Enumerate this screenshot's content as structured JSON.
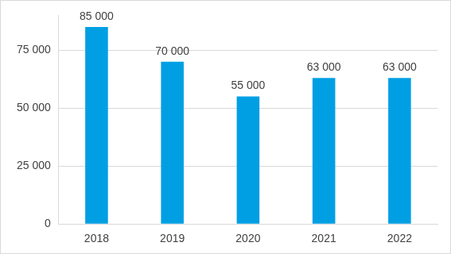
{
  "chart_data": {
    "type": "bar",
    "categories": [
      "2018",
      "2019",
      "2020",
      "2021",
      "2022"
    ],
    "values": [
      85000,
      70000,
      55000,
      63000,
      63000
    ],
    "value_labels": [
      "85 000",
      "70 000",
      "55 000",
      "63 000",
      "63 000"
    ],
    "data_labels": true,
    "color": "#009fe3",
    "ylim": [
      0,
      90000
    ],
    "yticks": [
      0,
      {
        "value": 25000,
        "label": "25 000"
      },
      {
        "value": 50000,
        "label": "50 000"
      },
      {
        "value": 75000,
        "label": "75 000"
      }
    ],
    "grid": true
  }
}
